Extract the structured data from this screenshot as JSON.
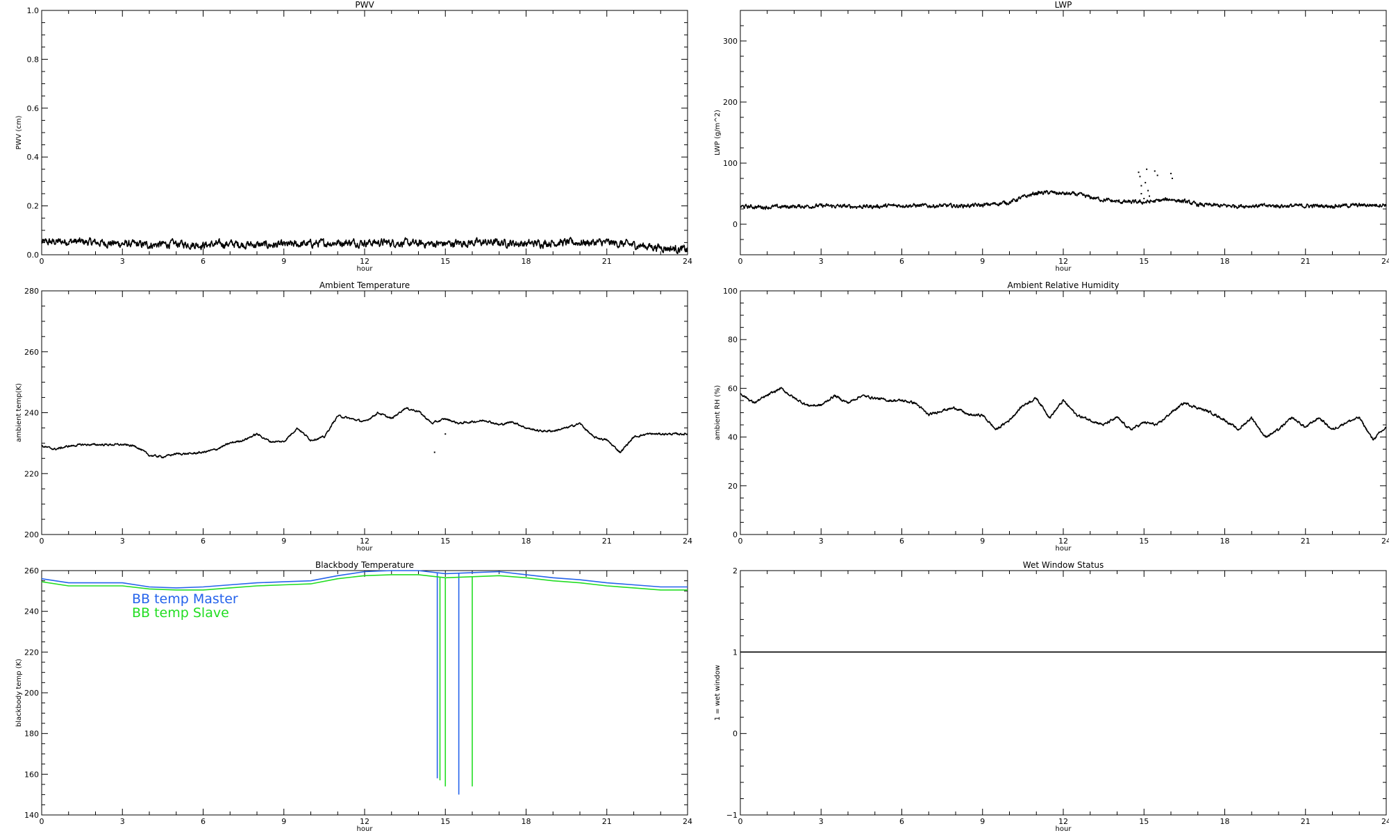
{
  "chart_data": [
    {
      "id": "pwv",
      "type": "line",
      "title": "PWV",
      "xlabel": "hour",
      "ylabel": "PWV (cm)",
      "xlim": [
        0,
        24
      ],
      "ylim": [
        0.0,
        1.0
      ],
      "x_ticks": [
        "0",
        "3",
        "6",
        "9",
        "12",
        "15",
        "18",
        "21",
        "24"
      ],
      "y_ticks": [
        "0.0",
        "0.2",
        "0.4",
        "0.6",
        "0.8",
        "1.0"
      ],
      "series": [
        {
          "color": "#000000",
          "noise": 0.012,
          "x": [
            0,
            1,
            2,
            3,
            4,
            5,
            6,
            7,
            8,
            9,
            10,
            11,
            12,
            13,
            14,
            15,
            16,
            17,
            18,
            19,
            20,
            21,
            22,
            23,
            24
          ],
          "y": [
            0.05,
            0.055,
            0.05,
            0.045,
            0.04,
            0.045,
            0.04,
            0.045,
            0.04,
            0.04,
            0.045,
            0.05,
            0.05,
            0.05,
            0.045,
            0.045,
            0.05,
            0.05,
            0.045,
            0.05,
            0.05,
            0.05,
            0.04,
            0.03,
            0.02
          ]
        }
      ]
    },
    {
      "id": "lwp",
      "type": "line",
      "title": "LWP",
      "xlabel": "hour",
      "ylabel": "LWP (g/m^2)",
      "xlim": [
        0,
        24
      ],
      "ylim": [
        -50,
        350
      ],
      "x_ticks": [
        "0",
        "3",
        "6",
        "9",
        "12",
        "15",
        "18",
        "21",
        "24"
      ],
      "y_ticks": [
        "0",
        "100",
        "200",
        "300"
      ],
      "y_tick_values": [
        0,
        100,
        200,
        300
      ],
      "series": [
        {
          "color": "#000000",
          "noise": 2.5,
          "x": [
            0,
            1,
            2,
            3,
            4,
            5,
            6,
            7,
            8,
            9,
            10,
            10.5,
            11,
            11.5,
            12,
            12.5,
            13,
            13.5,
            14,
            14.5,
            15,
            15.5,
            16,
            16.5,
            17,
            18,
            19,
            20,
            21,
            22,
            23,
            24
          ],
          "y": [
            29,
            28,
            29,
            30,
            29,
            29,
            31,
            30,
            30,
            31,
            36,
            44,
            51,
            52,
            50,
            49,
            44,
            40,
            37,
            36,
            36,
            38,
            41,
            37,
            32,
            30,
            30,
            30,
            30,
            30,
            31,
            32
          ]
        }
      ],
      "points": [
        [
          14.8,
          85
        ],
        [
          14.85,
          78
        ],
        [
          14.9,
          63
        ],
        [
          14.9,
          50
        ],
        [
          15.0,
          42
        ],
        [
          15.05,
          68
        ],
        [
          15.1,
          90
        ],
        [
          15.15,
          55
        ],
        [
          15.2,
          46
        ],
        [
          15.4,
          87
        ],
        [
          15.5,
          80
        ],
        [
          16.0,
          83
        ],
        [
          16.05,
          75
        ]
      ]
    },
    {
      "id": "ambient-temperature",
      "type": "line",
      "title": "Ambient Temperature",
      "xlabel": "hour",
      "ylabel": "ambient temp(K)",
      "xlim": [
        0,
        24
      ],
      "ylim": [
        200,
        280
      ],
      "x_ticks": [
        "0",
        "3",
        "6",
        "9",
        "12",
        "15",
        "18",
        "21",
        "24"
      ],
      "y_ticks": [
        "200",
        "220",
        "240",
        "260",
        "280"
      ],
      "series": [
        {
          "color": "#000000",
          "noise": 0.25,
          "x": [
            0,
            0.5,
            1,
            1.5,
            2,
            2.5,
            3,
            3.5,
            4,
            4.5,
            5,
            5.5,
            6,
            6.5,
            7,
            7.5,
            8,
            8.5,
            9,
            9.5,
            10,
            10.5,
            11,
            11.5,
            12,
            12.5,
            13,
            13.5,
            14,
            14.5,
            15,
            15.5,
            16,
            16.5,
            17,
            17.5,
            18,
            18.5,
            19,
            19.5,
            20,
            20.5,
            21,
            21.5,
            22,
            22.5,
            23,
            23.5,
            24
          ],
          "y": [
            229,
            228,
            229,
            229.5,
            229.5,
            229.5,
            229.5,
            229,
            226,
            225.5,
            226.5,
            226.5,
            227,
            228,
            230,
            231,
            233,
            230.5,
            230.5,
            235,
            231,
            232,
            239,
            238,
            237,
            240,
            238,
            241.5,
            240.5,
            236.5,
            238,
            236.5,
            237,
            237.5,
            236,
            237,
            235,
            234,
            234,
            235,
            236.5,
            232,
            231,
            227,
            232,
            233,
            233,
            233,
            233
          ]
        }
      ],
      "points": [
        [
          14.6,
          227
        ],
        [
          15.0,
          233
        ]
      ]
    },
    {
      "id": "ambient-relative-humidity",
      "type": "line",
      "title": "Ambient Relative Humidity",
      "xlabel": "hour",
      "ylabel": "ambient RH (%)",
      "xlim": [
        0,
        24
      ],
      "ylim": [
        0,
        100
      ],
      "x_ticks": [
        "0",
        "3",
        "6",
        "9",
        "12",
        "15",
        "18",
        "21",
        "24"
      ],
      "y_ticks": [
        "0",
        "20",
        "40",
        "60",
        "80",
        "100"
      ],
      "series": [
        {
          "color": "#000000",
          "noise": 0.4,
          "x": [
            0,
            0.5,
            1,
            1.5,
            2,
            2.5,
            3,
            3.5,
            4,
            4.5,
            5,
            5.5,
            6,
            6.5,
            7,
            7.5,
            8,
            8.5,
            9,
            9.5,
            10,
            10.5,
            11,
            11.5,
            12,
            12.5,
            13,
            13.5,
            14,
            14.5,
            15,
            15.5,
            16,
            16.5,
            17,
            17.5,
            18,
            18.5,
            19,
            19.5,
            20,
            20.5,
            21,
            21.5,
            22,
            22.5,
            23,
            23.5,
            24
          ],
          "y": [
            58,
            54,
            57,
            60,
            56,
            53,
            53,
            57,
            54,
            57,
            56,
            55,
            55,
            54,
            49,
            51,
            52,
            49,
            49,
            43,
            47,
            53,
            56,
            48,
            55,
            49,
            47,
            45,
            48,
            43,
            46,
            45,
            50,
            54,
            52,
            50,
            47,
            43,
            48,
            40,
            43,
            48,
            44,
            48,
            43,
            46,
            48,
            39,
            44
          ]
        }
      ]
    },
    {
      "id": "blackbody-temperature",
      "type": "line",
      "title": "Blackbody Temperature",
      "xlabel": "hour",
      "ylabel": "blackbody temp (K)",
      "xlim": [
        0,
        24
      ],
      "ylim": [
        140,
        260
      ],
      "x_ticks": [
        "0",
        "3",
        "6",
        "9",
        "12",
        "15",
        "18",
        "21",
        "24"
      ],
      "y_ticks": [
        "140",
        "160",
        "180",
        "200",
        "220",
        "240",
        "260"
      ],
      "legend": [
        {
          "label": "BB temp Master",
          "color": "#2563eb"
        },
        {
          "label": "BB temp Slave",
          "color": "#22dd22"
        }
      ],
      "series": [
        {
          "name": "BB temp Master",
          "color": "#2563eb",
          "noise": 0,
          "x": [
            0,
            1,
            2,
            3,
            4,
            5,
            6,
            7,
            8,
            9,
            10,
            11,
            12,
            13,
            14,
            15,
            16,
            17,
            18,
            19,
            20,
            21,
            22,
            23,
            24
          ],
          "y": [
            256,
            254,
            254,
            254,
            252,
            251.5,
            252,
            253,
            254,
            254.5,
            255,
            257.5,
            259.5,
            260,
            260,
            258.5,
            259,
            259.5,
            258,
            256.5,
            255.5,
            254,
            253,
            252,
            252
          ],
          "spikes": [
            [
              14.7,
              158
            ],
            [
              15.5,
              150
            ]
          ]
        },
        {
          "name": "BB temp Slave",
          "color": "#22dd22",
          "noise": 0,
          "x": [
            0,
            1,
            2,
            3,
            4,
            5,
            6,
            7,
            8,
            9,
            10,
            11,
            12,
            13,
            14,
            15,
            16,
            17,
            18,
            19,
            20,
            21,
            22,
            23,
            24
          ],
          "y": [
            254.5,
            252.5,
            252.5,
            252.5,
            251,
            250.5,
            250.5,
            251.5,
            252.5,
            253,
            253.5,
            256,
            257.5,
            258,
            258,
            256.5,
            257,
            257.5,
            256.5,
            255,
            254,
            252.5,
            251.5,
            250.5,
            250.5
          ],
          "spikes": [
            [
              14.8,
              157
            ],
            [
              15.0,
              154
            ],
            [
              16.0,
              154
            ]
          ]
        }
      ]
    },
    {
      "id": "wet-window-status",
      "type": "line",
      "title": "Wet Window Status",
      "xlabel": "hour",
      "ylabel": "1 = wet window",
      "xlim": [
        0,
        24
      ],
      "ylim": [
        -1,
        2
      ],
      "x_ticks": [
        "0",
        "3",
        "6",
        "9",
        "12",
        "15",
        "18",
        "21",
        "24"
      ],
      "y_ticks": [
        "−1",
        "0",
        "1",
        "2"
      ],
      "series": [
        {
          "color": "#000000",
          "noise": 0,
          "x": [
            0,
            24
          ],
          "y": [
            1,
            1
          ]
        }
      ]
    }
  ]
}
